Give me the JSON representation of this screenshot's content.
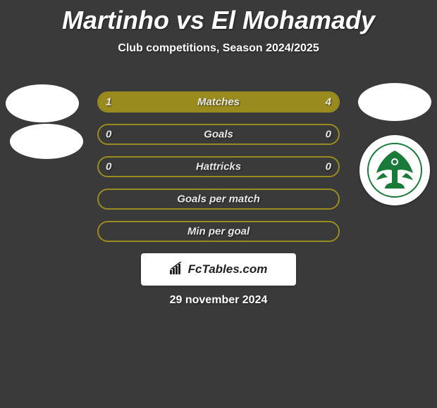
{
  "header": {
    "title": "Martinho vs El Mohamady",
    "subtitle": "Club competitions, Season 2024/2025"
  },
  "colors": {
    "bar_border": "#9a8b1f",
    "bar_fill": "#9a8b1f",
    "bar_track": "#3a3a3a",
    "background": "#3a3a3a",
    "text": "#e8e8e8",
    "badge_green": "#1a7a3a"
  },
  "bars": [
    {
      "label": "Matches",
      "left": "1",
      "right": "4",
      "left_pct": 20,
      "right_pct": 80
    },
    {
      "label": "Goals",
      "left": "0",
      "right": "0",
      "left_pct": 0,
      "right_pct": 0
    },
    {
      "label": "Hattricks",
      "left": "0",
      "right": "0",
      "left_pct": 0,
      "right_pct": 0
    },
    {
      "label": "Goals per match",
      "left": "",
      "right": "",
      "left_pct": 0,
      "right_pct": 0
    },
    {
      "label": "Min per goal",
      "left": "",
      "right": "",
      "left_pct": 0,
      "right_pct": 0
    }
  ],
  "footer": {
    "logo_text": "FcTables.com",
    "date": "29 november 2024"
  }
}
